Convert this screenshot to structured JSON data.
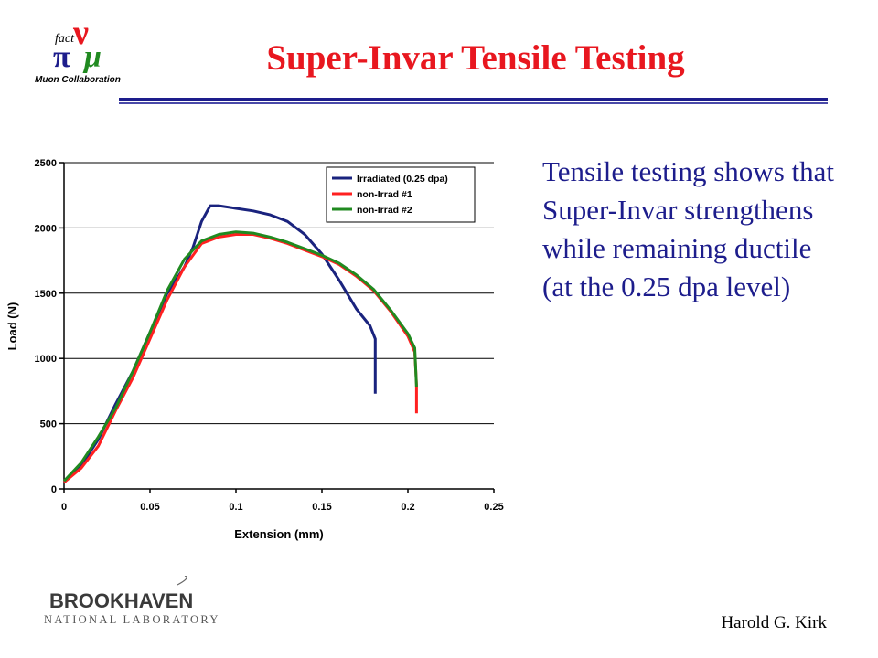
{
  "slide": {
    "title": "Super-Invar Tensile Testing",
    "body": "Tensile testing shows that Super-Invar strengthens while remaining ductile (at the 0.25 dpa level)",
    "author": "Harold G. Kirk",
    "logo_top": {
      "caption": "Muon Collaboration",
      "symbol": "fact",
      "greek": "ν π μ"
    },
    "logo_bottom": {
      "name": "BROOKHAVEN",
      "subtitle": "NATIONAL LABORATORY"
    },
    "colors": {
      "title": "#e8171f",
      "body": "#1d1d8c",
      "rule": "#1d1d8c"
    }
  },
  "chart_data": {
    "type": "line",
    "title": "",
    "xlabel": "Extension (mm)",
    "ylabel": "Load (N)",
    "xlim": [
      0,
      0.25
    ],
    "ylim": [
      0,
      2500
    ],
    "xticks": [
      "0",
      "0.05",
      "0.1",
      "0.15",
      "0.2",
      "0.25"
    ],
    "yticks": [
      "0",
      "500",
      "1000",
      "1500",
      "2000",
      "2500"
    ],
    "grid": "horizontal",
    "legend_position": "top-right",
    "series": [
      {
        "name": "Irradiated (0.25 dpa)",
        "color": "#1a237e",
        "x": [
          0,
          0.01,
          0.02,
          0.03,
          0.04,
          0.05,
          0.06,
          0.07,
          0.075,
          0.08,
          0.085,
          0.09,
          0.1,
          0.11,
          0.12,
          0.13,
          0.14,
          0.15,
          0.16,
          0.17,
          0.178,
          0.181,
          0.181
        ],
        "y": [
          50,
          180,
          380,
          650,
          900,
          1200,
          1500,
          1700,
          1850,
          2050,
          2170,
          2170,
          2150,
          2130,
          2100,
          2050,
          1950,
          1800,
          1600,
          1380,
          1250,
          1150,
          730
        ]
      },
      {
        "name": "non-Irrad #1",
        "color": "#ff2020",
        "x": [
          0,
          0.01,
          0.02,
          0.03,
          0.04,
          0.05,
          0.06,
          0.07,
          0.08,
          0.09,
          0.1,
          0.11,
          0.12,
          0.13,
          0.14,
          0.15,
          0.16,
          0.17,
          0.18,
          0.19,
          0.2,
          0.204,
          0.205,
          0.205
        ],
        "y": [
          50,
          160,
          330,
          600,
          850,
          1150,
          1450,
          1700,
          1880,
          1930,
          1950,
          1950,
          1920,
          1880,
          1830,
          1780,
          1720,
          1630,
          1520,
          1360,
          1170,
          1050,
          800,
          580
        ]
      },
      {
        "name": "non-Irrad #2",
        "color": "#208a20",
        "x": [
          0,
          0.01,
          0.02,
          0.03,
          0.04,
          0.05,
          0.06,
          0.07,
          0.08,
          0.09,
          0.1,
          0.11,
          0.12,
          0.13,
          0.14,
          0.15,
          0.16,
          0.17,
          0.18,
          0.19,
          0.2,
          0.204,
          0.205
        ],
        "y": [
          60,
          200,
          400,
          620,
          900,
          1200,
          1520,
          1760,
          1900,
          1950,
          1970,
          1960,
          1930,
          1890,
          1840,
          1790,
          1730,
          1640,
          1530,
          1370,
          1190,
          1080,
          780
        ]
      }
    ]
  }
}
